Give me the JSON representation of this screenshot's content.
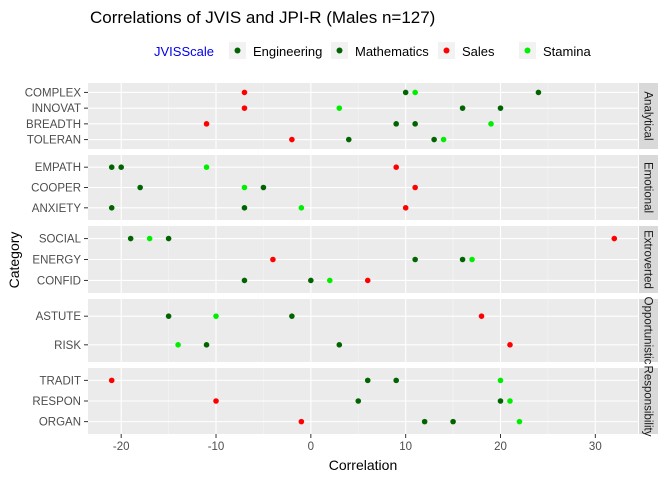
{
  "chart_data": {
    "type": "scatter",
    "title": "Correlations of JVIS and JPI-R (Males n=127)",
    "xlabel": "Correlation",
    "ylabel": "Category",
    "xlim": [
      -23.5,
      34.5
    ],
    "x_ticks": [
      -20,
      -10,
      0,
      10,
      20,
      30
    ],
    "x_tick_labels": [
      "-20",
      "-10",
      "0",
      "10",
      "20",
      "30"
    ],
    "grid": true,
    "legend": {
      "title": "JVISScale",
      "position": "top",
      "entries": [
        {
          "name": "Engineering",
          "color": "#006400"
        },
        {
          "name": "Mathematics",
          "color": "#006400"
        },
        {
          "name": "Sales",
          "color": "#ff0000"
        },
        {
          "name": "Stamina",
          "color": "#00ee00"
        }
      ]
    },
    "facets": [
      {
        "name": "Analytical",
        "categories": [
          "COMPLEX",
          "INNOVAT",
          "BREADTH",
          "TOLERAN"
        ],
        "points": [
          {
            "category": "COMPLEX",
            "x": -7,
            "series": "Sales"
          },
          {
            "category": "COMPLEX",
            "x": 10,
            "series": "Mathematics"
          },
          {
            "category": "COMPLEX",
            "x": 11,
            "series": "Stamina"
          },
          {
            "category": "COMPLEX",
            "x": 24,
            "series": "Engineering"
          },
          {
            "category": "INNOVAT",
            "x": -7,
            "series": "Sales"
          },
          {
            "category": "INNOVAT",
            "x": 3,
            "series": "Stamina"
          },
          {
            "category": "INNOVAT",
            "x": 16,
            "series": "Mathematics"
          },
          {
            "category": "INNOVAT",
            "x": 20,
            "series": "Engineering"
          },
          {
            "category": "BREADTH",
            "x": -11,
            "series": "Sales"
          },
          {
            "category": "BREADTH",
            "x": 9,
            "series": "Engineering"
          },
          {
            "category": "BREADTH",
            "x": 11,
            "series": "Mathematics"
          },
          {
            "category": "BREADTH",
            "x": 19,
            "series": "Stamina"
          },
          {
            "category": "TOLERAN",
            "x": -2,
            "series": "Sales"
          },
          {
            "category": "TOLERAN",
            "x": 4,
            "series": "Engineering"
          },
          {
            "category": "TOLERAN",
            "x": 13,
            "series": "Mathematics"
          },
          {
            "category": "TOLERAN",
            "x": 14,
            "series": "Stamina"
          }
        ]
      },
      {
        "name": "Emotional",
        "categories": [
          "EMPATH",
          "COOPER",
          "ANXIETY"
        ],
        "points": [
          {
            "category": "EMPATH",
            "x": -21,
            "series": "Engineering"
          },
          {
            "category": "EMPATH",
            "x": -20,
            "series": "Mathematics"
          },
          {
            "category": "EMPATH",
            "x": -11,
            "series": "Stamina"
          },
          {
            "category": "EMPATH",
            "x": 9,
            "series": "Sales"
          },
          {
            "category": "COOPER",
            "x": -18,
            "series": "Engineering"
          },
          {
            "category": "COOPER",
            "x": -7,
            "series": "Stamina"
          },
          {
            "category": "COOPER",
            "x": -5,
            "series": "Mathematics"
          },
          {
            "category": "COOPER",
            "x": 11,
            "series": "Sales"
          },
          {
            "category": "ANXIETY",
            "x": -21,
            "series": "Engineering"
          },
          {
            "category": "ANXIETY",
            "x": -7,
            "series": "Mathematics"
          },
          {
            "category": "ANXIETY",
            "x": -1,
            "series": "Stamina"
          },
          {
            "category": "ANXIETY",
            "x": 10,
            "series": "Sales"
          }
        ]
      },
      {
        "name": "Extroverted",
        "categories": [
          "SOCIAL",
          "ENERGY",
          "CONFID"
        ],
        "points": [
          {
            "category": "SOCIAL",
            "x": -19,
            "series": "Engineering"
          },
          {
            "category": "SOCIAL",
            "x": -17,
            "series": "Stamina"
          },
          {
            "category": "SOCIAL",
            "x": -15,
            "series": "Mathematics"
          },
          {
            "category": "SOCIAL",
            "x": 32,
            "series": "Sales"
          },
          {
            "category": "ENERGY",
            "x": -4,
            "series": "Sales"
          },
          {
            "category": "ENERGY",
            "x": 11,
            "series": "Engineering"
          },
          {
            "category": "ENERGY",
            "x": 16,
            "series": "Mathematics"
          },
          {
            "category": "ENERGY",
            "x": 17,
            "series": "Stamina"
          },
          {
            "category": "CONFID",
            "x": -7,
            "series": "Engineering"
          },
          {
            "category": "CONFID",
            "x": 0,
            "series": "Mathematics"
          },
          {
            "category": "CONFID",
            "x": 2,
            "series": "Stamina"
          },
          {
            "category": "CONFID",
            "x": 6,
            "series": "Sales"
          }
        ]
      },
      {
        "name": "Opportunistic",
        "categories": [
          "ASTUTE",
          "RISK"
        ],
        "points": [
          {
            "category": "ASTUTE",
            "x": -15,
            "series": "Engineering"
          },
          {
            "category": "ASTUTE",
            "x": -10,
            "series": "Stamina"
          },
          {
            "category": "ASTUTE",
            "x": -2,
            "series": "Mathematics"
          },
          {
            "category": "ASTUTE",
            "x": 18,
            "series": "Sales"
          },
          {
            "category": "RISK",
            "x": -14,
            "series": "Stamina"
          },
          {
            "category": "RISK",
            "x": -11,
            "series": "Engineering"
          },
          {
            "category": "RISK",
            "x": 3,
            "series": "Mathematics"
          },
          {
            "category": "RISK",
            "x": 21,
            "series": "Sales"
          }
        ]
      },
      {
        "name": "Responsibility",
        "categories": [
          "TRADIT",
          "RESPON",
          "ORGAN"
        ],
        "points": [
          {
            "category": "TRADIT",
            "x": -21,
            "series": "Sales"
          },
          {
            "category": "TRADIT",
            "x": 6,
            "series": "Engineering"
          },
          {
            "category": "TRADIT",
            "x": 9,
            "series": "Mathematics"
          },
          {
            "category": "TRADIT",
            "x": 20,
            "series": "Stamina"
          },
          {
            "category": "RESPON",
            "x": -10,
            "series": "Sales"
          },
          {
            "category": "RESPON",
            "x": 5,
            "series": "Engineering"
          },
          {
            "category": "RESPON",
            "x": 20,
            "series": "Mathematics"
          },
          {
            "category": "RESPON",
            "x": 21,
            "series": "Stamina"
          },
          {
            "category": "ORGAN",
            "x": -1,
            "series": "Sales"
          },
          {
            "category": "ORGAN",
            "x": 12,
            "series": "Engineering"
          },
          {
            "category": "ORGAN",
            "x": 15,
            "series": "Mathematics"
          },
          {
            "category": "ORGAN",
            "x": 22,
            "series": "Stamina"
          }
        ]
      }
    ]
  }
}
